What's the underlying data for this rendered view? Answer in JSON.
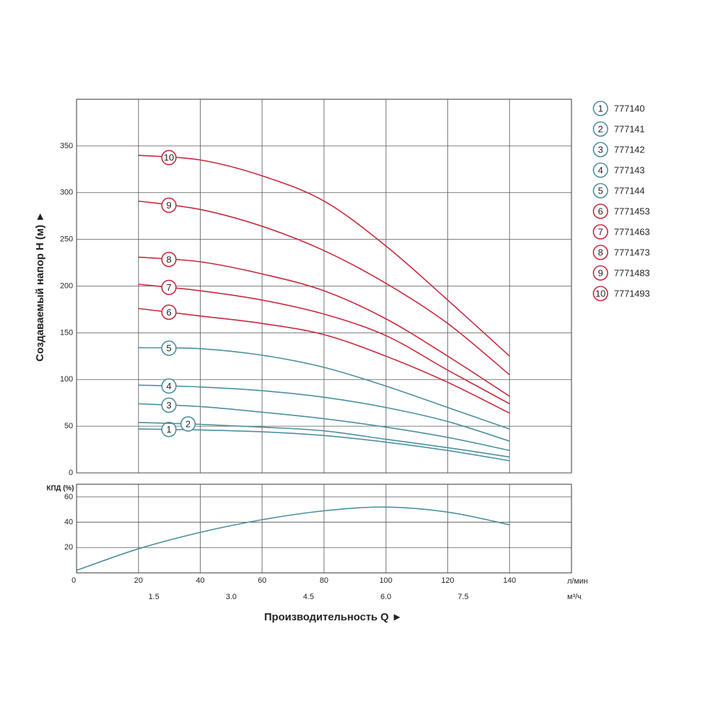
{
  "chart_data": [
    {
      "type": "line",
      "ylabel": "Создаваемый напор H (м) ►",
      "xlim": [
        0,
        160
      ],
      "ylim": [
        0,
        400
      ],
      "yticks": [
        0,
        50,
        100,
        150,
        200,
        250,
        300,
        350
      ],
      "x": [
        20,
        40,
        60,
        80,
        100,
        120,
        140
      ],
      "series": [
        {
          "name": "777140",
          "label": "1",
          "color": "#4a8fa0",
          "values": [
            47,
            46,
            44,
            40,
            33,
            24,
            13
          ]
        },
        {
          "name": "777141",
          "label": "2",
          "color": "#4a8fa0",
          "values": [
            54,
            52,
            49,
            45,
            36,
            27,
            17
          ]
        },
        {
          "name": "777142",
          "label": "3",
          "color": "#4a8fa0",
          "values": [
            74,
            71,
            65,
            58,
            49,
            38,
            24
          ]
        },
        {
          "name": "777143",
          "label": "4",
          "color": "#4a8fa0",
          "values": [
            94,
            92,
            88,
            81,
            70,
            55,
            34
          ]
        },
        {
          "name": "777144",
          "label": "5",
          "color": "#4a8fa0",
          "values": [
            134,
            133,
            126,
            113,
            93,
            70,
            47
          ]
        },
        {
          "name": "7771453",
          "label": "6",
          "color": "#c8283c",
          "values": [
            176,
            168,
            160,
            148,
            125,
            97,
            64
          ]
        },
        {
          "name": "7771463",
          "label": "7",
          "color": "#c8283c",
          "values": [
            202,
            195,
            185,
            170,
            147,
            110,
            74
          ]
        },
        {
          "name": "7771473",
          "label": "8",
          "color": "#c8283c",
          "values": [
            231,
            226,
            213,
            195,
            165,
            125,
            82
          ]
        },
        {
          "name": "7771483",
          "label": "9",
          "color": "#c8283c",
          "values": [
            291,
            282,
            264,
            238,
            203,
            160,
            105
          ]
        },
        {
          "name": "7771493",
          "label": "10",
          "color": "#c8283c",
          "values": [
            340,
            335,
            318,
            291,
            243,
            185,
            125
          ]
        }
      ]
    },
    {
      "type": "line",
      "ylabel": "КПД (%)",
      "xlabel": "Производительность Q ►",
      "xunit": "л/мин",
      "x2unit": "м³/ч",
      "xlim": [
        0,
        160
      ],
      "ylim": [
        0,
        70
      ],
      "yticks": [
        20,
        40,
        60
      ],
      "xticks": [
        0,
        20,
        40,
        60,
        80,
        100,
        120,
        140
      ],
      "x2ticks": [
        {
          "value": 25,
          "label": "1.5"
        },
        {
          "value": 50,
          "label": "3.0"
        },
        {
          "value": 75,
          "label": "4.5"
        },
        {
          "value": 100,
          "label": "6.0"
        },
        {
          "value": 125,
          "label": "7.5"
        }
      ],
      "x": [
        0,
        20,
        40,
        60,
        80,
        100,
        120,
        140
      ],
      "series": [
        {
          "color": "#4a8fa0",
          "values": [
            2,
            19,
            32,
            42,
            49,
            52,
            48,
            38
          ]
        }
      ]
    }
  ]
}
